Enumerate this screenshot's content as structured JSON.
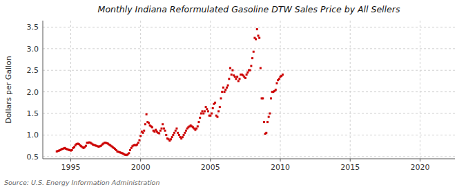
{
  "chart_data": {
    "type": "scatter",
    "title": "Monthly Indiana Reformulated Gasoline DTW Sales Price by All Sellers",
    "y_label": "Dollars per Gallon",
    "annotations": [
      "Source: U.S. Energy Information Administration"
    ],
    "color": "#cc0000",
    "marker": "square",
    "grid": true,
    "xlim": [
      1993.0,
      2022.5
    ],
    "ylim": [
      0.45,
      3.65
    ],
    "xticks": [
      1995,
      2000,
      2005,
      2010,
      2015,
      2020
    ],
    "yticks": [
      0.5,
      {
        "value": 1.0,
        "label": "1.0"
      },
      1.5,
      {
        "value": 2.0,
        "label": "2.0"
      },
      2.5,
      {
        "value": 3.0,
        "label": "3.0"
      },
      3.5
    ],
    "x": [
      1994.0,
      1994.083,
      1994.167,
      1994.25,
      1994.333,
      1994.417,
      1994.5,
      1994.583,
      1994.667,
      1994.75,
      1994.833,
      1994.917,
      1995.0,
      1995.083,
      1995.167,
      1995.25,
      1995.333,
      1995.417,
      1995.5,
      1995.583,
      1995.667,
      1995.75,
      1995.833,
      1995.917,
      1996.0,
      1996.083,
      1996.167,
      1996.25,
      1996.333,
      1996.417,
      1996.5,
      1996.583,
      1996.667,
      1996.75,
      1996.833,
      1996.917,
      1997.0,
      1997.083,
      1997.167,
      1997.25,
      1997.333,
      1997.417,
      1997.5,
      1997.583,
      1997.667,
      1997.75,
      1997.833,
      1997.917,
      1998.0,
      1998.083,
      1998.167,
      1998.25,
      1998.333,
      1998.417,
      1998.5,
      1998.583,
      1998.667,
      1998.75,
      1998.833,
      1998.917,
      1999.0,
      1999.083,
      1999.167,
      1999.25,
      1999.333,
      1999.417,
      1999.5,
      1999.583,
      1999.667,
      1999.75,
      1999.833,
      1999.917,
      2000.0,
      2000.083,
      2000.167,
      2000.25,
      2000.333,
      2000.417,
      2000.5,
      2000.583,
      2000.667,
      2000.75,
      2000.833,
      2000.917,
      2001.0,
      2001.083,
      2001.167,
      2001.25,
      2001.333,
      2001.417,
      2001.5,
      2001.583,
      2001.667,
      2001.75,
      2001.833,
      2001.917,
      2002.0,
      2002.083,
      2002.167,
      2002.25,
      2002.333,
      2002.417,
      2002.5,
      2002.583,
      2002.667,
      2002.75,
      2002.833,
      2002.917,
      2003.0,
      2003.083,
      2003.167,
      2003.25,
      2003.333,
      2003.417,
      2003.5,
      2003.583,
      2003.667,
      2003.75,
      2003.833,
      2003.917,
      2004.0,
      2004.083,
      2004.167,
      2004.25,
      2004.333,
      2004.417,
      2004.5,
      2004.583,
      2004.667,
      2004.75,
      2004.833,
      2004.917,
      2005.0,
      2005.083,
      2005.167,
      2005.25,
      2005.333,
      2005.417,
      2005.5,
      2005.583,
      2005.667,
      2005.75,
      2005.833,
      2005.917,
      2006.0,
      2006.083,
      2006.167,
      2006.25,
      2006.333,
      2006.417,
      2006.5,
      2006.583,
      2006.667,
      2006.75,
      2006.833,
      2006.917,
      2007.0,
      2007.083,
      2007.167,
      2007.25,
      2007.333,
      2007.417,
      2007.5,
      2007.583,
      2007.667,
      2007.75,
      2007.833,
      2007.917,
      2008.0,
      2008.083,
      2008.167,
      2008.25,
      2008.333,
      2008.417,
      2008.5,
      2008.583,
      2008.667,
      2008.75,
      2008.833,
      2008.917,
      2009.0,
      2009.083,
      2009.167,
      2009.25,
      2009.333,
      2009.417,
      2009.5,
      2009.583,
      2009.667,
      2009.75,
      2009.833,
      2009.917,
      2010.0,
      2010.083,
      2010.167
    ],
    "values": [
      0.62,
      0.63,
      0.64,
      0.65,
      0.67,
      0.68,
      0.69,
      0.7,
      0.68,
      0.67,
      0.66,
      0.65,
      0.64,
      0.65,
      0.7,
      0.72,
      0.76,
      0.79,
      0.8,
      0.79,
      0.76,
      0.74,
      0.72,
      0.7,
      0.72,
      0.75,
      0.82,
      0.82,
      0.83,
      0.82,
      0.8,
      0.78,
      0.77,
      0.76,
      0.75,
      0.74,
      0.73,
      0.74,
      0.75,
      0.78,
      0.8,
      0.82,
      0.82,
      0.81,
      0.8,
      0.78,
      0.76,
      0.74,
      0.72,
      0.7,
      0.68,
      0.65,
      0.62,
      0.61,
      0.6,
      0.59,
      0.58,
      0.57,
      0.55,
      0.54,
      0.54,
      0.55,
      0.58,
      0.65,
      0.7,
      0.74,
      0.76,
      0.77,
      0.76,
      0.78,
      0.82,
      0.88,
      0.98,
      1.08,
      1.05,
      1.1,
      1.25,
      1.48,
      1.3,
      1.28,
      1.22,
      1.2,
      1.18,
      1.1,
      1.08,
      1.12,
      1.08,
      1.05,
      1.04,
      1.1,
      1.15,
      1.25,
      1.15,
      1.1,
      1.0,
      0.92,
      0.9,
      0.87,
      0.9,
      0.95,
      1.0,
      1.05,
      1.1,
      1.15,
      1.05,
      1.0,
      0.95,
      0.92,
      0.95,
      1.0,
      1.05,
      1.1,
      1.15,
      1.18,
      1.2,
      1.22,
      1.2,
      1.18,
      1.15,
      1.12,
      1.15,
      1.2,
      1.3,
      1.4,
      1.5,
      1.55,
      1.5,
      1.55,
      1.65,
      1.6,
      1.55,
      1.45,
      1.45,
      1.5,
      1.62,
      1.72,
      1.75,
      1.45,
      1.42,
      1.55,
      1.65,
      1.85,
      2.0,
      2.1,
      2.0,
      2.05,
      2.1,
      2.15,
      2.3,
      2.55,
      2.4,
      2.5,
      2.38,
      2.35,
      2.3,
      2.35,
      2.25,
      2.3,
      2.4,
      2.4,
      2.38,
      2.35,
      2.32,
      2.4,
      2.45,
      2.5,
      2.5,
      2.6,
      2.78,
      2.93,
      3.25,
      3.22,
      3.45,
      3.3,
      3.25,
      2.55,
      1.85,
      1.85,
      1.3,
      1.03,
      1.05,
      1.3,
      1.42,
      1.5,
      1.85,
      2.0,
      2.0,
      2.02,
      2.05,
      2.2,
      2.27,
      2.3,
      2.35,
      2.37,
      2.4
    ]
  }
}
